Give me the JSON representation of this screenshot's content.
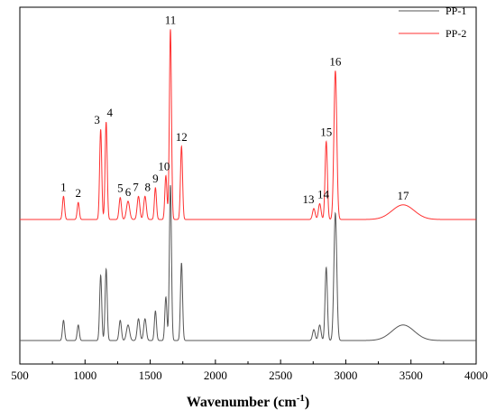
{
  "chart_data": {
    "type": "line",
    "xlabel": "Wavenumber (cm",
    "xlabel_sup": "-1",
    "xlabel_close": ")",
    "xlim": [
      500,
      4000
    ],
    "xticks": [
      500,
      1000,
      1500,
      2000,
      2500,
      3000,
      3500,
      4000
    ],
    "ylabel": "",
    "yticks_shown": false,
    "legend": {
      "position": "top-right",
      "entries": [
        "PP-1",
        "PP-2"
      ]
    },
    "series": [
      {
        "name": "PP-1",
        "color": "#555555",
        "baseline": 0,
        "peaks": [
          {
            "x": 835,
            "h": 0.13,
            "w": 8
          },
          {
            "x": 948,
            "h": 0.1,
            "w": 8
          },
          {
            "x": 1120,
            "h": 0.42,
            "w": 8
          },
          {
            "x": 1162,
            "h": 0.46,
            "w": 8
          },
          {
            "x": 1270,
            "h": 0.13,
            "w": 9
          },
          {
            "x": 1330,
            "h": 0.1,
            "w": 12
          },
          {
            "x": 1410,
            "h": 0.14,
            "w": 10
          },
          {
            "x": 1460,
            "h": 0.14,
            "w": 10
          },
          {
            "x": 1540,
            "h": 0.19,
            "w": 8
          },
          {
            "x": 1620,
            "h": 0.28,
            "w": 8
          },
          {
            "x": 1655,
            "h": 1.0,
            "w": 8
          },
          {
            "x": 1740,
            "h": 0.5,
            "w": 8
          },
          {
            "x": 2755,
            "h": 0.07,
            "w": 10
          },
          {
            "x": 2800,
            "h": 0.1,
            "w": 10
          },
          {
            "x": 2850,
            "h": 0.47,
            "w": 9
          },
          {
            "x": 2920,
            "h": 0.82,
            "w": 11
          },
          {
            "x": 3440,
            "h": 0.1,
            "w": 85
          }
        ]
      },
      {
        "name": "PP-2",
        "color": "#ff3030",
        "baseline": 0,
        "peaks": [
          {
            "x": 835,
            "h": 0.095,
            "w": 8
          },
          {
            "x": 948,
            "h": 0.07,
            "w": 8
          },
          {
            "x": 1120,
            "h": 0.37,
            "w": 8
          },
          {
            "x": 1162,
            "h": 0.4,
            "w": 8
          },
          {
            "x": 1270,
            "h": 0.09,
            "w": 9
          },
          {
            "x": 1330,
            "h": 0.075,
            "w": 12
          },
          {
            "x": 1410,
            "h": 0.095,
            "w": 10
          },
          {
            "x": 1460,
            "h": 0.095,
            "w": 10
          },
          {
            "x": 1540,
            "h": 0.13,
            "w": 8
          },
          {
            "x": 1620,
            "h": 0.18,
            "w": 8
          },
          {
            "x": 1655,
            "h": 0.78,
            "w": 8
          },
          {
            "x": 1740,
            "h": 0.3,
            "w": 8
          },
          {
            "x": 2755,
            "h": 0.045,
            "w": 10
          },
          {
            "x": 2800,
            "h": 0.065,
            "w": 10
          },
          {
            "x": 2850,
            "h": 0.32,
            "w": 9
          },
          {
            "x": 2920,
            "h": 0.61,
            "w": 11
          },
          {
            "x": 3440,
            "h": 0.06,
            "w": 85
          }
        ]
      }
    ],
    "annotations": [
      {
        "label": "1",
        "x": 835
      },
      {
        "label": "2",
        "x": 948
      },
      {
        "label": "3",
        "x": 1120
      },
      {
        "label": "4",
        "x": 1162
      },
      {
        "label": "5",
        "x": 1270
      },
      {
        "label": "6",
        "x": 1330
      },
      {
        "label": "7",
        "x": 1410
      },
      {
        "label": "8",
        "x": 1460
      },
      {
        "label": "9",
        "x": 1540
      },
      {
        "label": "10",
        "x": 1620
      },
      {
        "label": "11",
        "x": 1655
      },
      {
        "label": "12",
        "x": 1740
      },
      {
        "label": "13",
        "x": 2755
      },
      {
        "label": "14",
        "x": 2800
      },
      {
        "label": "15",
        "x": 2850
      },
      {
        "label": "16",
        "x": 2920
      },
      {
        "label": "17",
        "x": 3440
      }
    ]
  }
}
